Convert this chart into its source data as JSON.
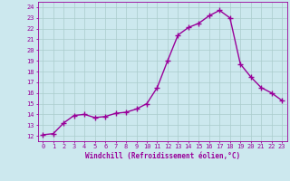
{
  "x": [
    0,
    1,
    2,
    3,
    4,
    5,
    6,
    7,
    8,
    9,
    10,
    11,
    12,
    13,
    14,
    15,
    16,
    17,
    18,
    19,
    20,
    21,
    22,
    23
  ],
  "y": [
    12.1,
    12.2,
    13.2,
    13.9,
    14.0,
    13.7,
    13.8,
    14.1,
    14.2,
    14.5,
    15.0,
    16.5,
    19.0,
    21.4,
    22.1,
    22.5,
    23.2,
    23.7,
    23.0,
    18.7,
    17.5,
    16.5,
    16.0,
    15.3
  ],
  "line_color": "#990099",
  "marker": "D",
  "marker_size": 2.0,
  "linewidth": 1.0,
  "bg_color": "#cce8ee",
  "grid_color": "#aacccc",
  "xlabel": "Windchill (Refroidissement éolien,°C)",
  "xlabel_color": "#990099",
  "tick_color": "#990099",
  "ylabel_ticks": [
    12,
    13,
    14,
    15,
    16,
    17,
    18,
    19,
    20,
    21,
    22,
    23,
    24
  ],
  "xlim": [
    -0.5,
    23.5
  ],
  "ylim": [
    11.5,
    24.5
  ],
  "font_family": "monospace",
  "tick_fontsize": 5.0,
  "xlabel_fontsize": 5.5
}
